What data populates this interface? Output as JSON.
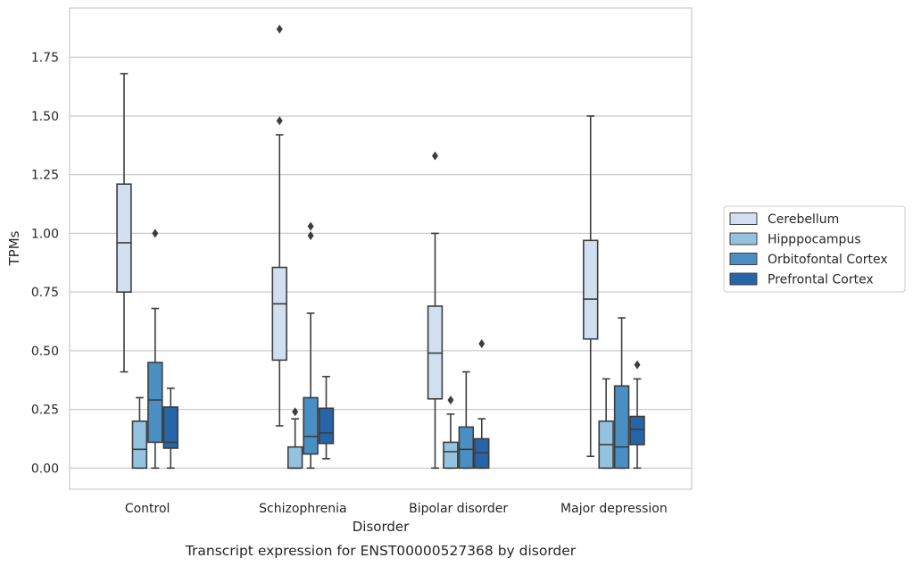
{
  "chart_data": {
    "type": "box",
    "caption": "Transcript expression for ENST00000527368 by disorder",
    "xlabel": "Disorder",
    "ylabel": "TPMs",
    "ylim": [
      -0.09,
      1.96
    ],
    "yticks": [
      0.0,
      0.25,
      0.5,
      0.75,
      1.0,
      1.25,
      1.5,
      1.75
    ],
    "ytick_labels": [
      "0.00",
      "0.25",
      "0.50",
      "0.75",
      "1.00",
      "1.25",
      "1.50",
      "1.75"
    ],
    "grid": "horizontal",
    "legend_position": "right",
    "categories": [
      "Control",
      "Schizophrenia",
      "Bipolar disorder",
      "Major depression"
    ],
    "series": [
      {
        "name": "Cerebellum",
        "color": "#d0e0f0",
        "boxes": [
          {
            "whislo": 0.41,
            "q1": 0.75,
            "med": 0.96,
            "q3": 1.21,
            "whishi": 1.68,
            "fliers": []
          },
          {
            "whislo": 0.18,
            "q1": 0.46,
            "med": 0.7,
            "q3": 0.855,
            "whishi": 1.42,
            "fliers": [
              1.48,
              1.87
            ]
          },
          {
            "whislo": 0.0,
            "q1": 0.295,
            "med": 0.49,
            "q3": 0.69,
            "whishi": 1.0,
            "fliers": [
              1.33
            ]
          },
          {
            "whislo": 0.05,
            "q1": 0.55,
            "med": 0.72,
            "q3": 0.97,
            "whishi": 1.5,
            "fliers": []
          }
        ]
      },
      {
        "name": "Hipppocampus",
        "color": "#94c3df",
        "boxes": [
          {
            "whislo": 0.0,
            "q1": 0.0,
            "med": 0.08,
            "q3": 0.2,
            "whishi": 0.3,
            "fliers": []
          },
          {
            "whislo": 0.0,
            "q1": 0.0,
            "med": 0.0,
            "q3": 0.09,
            "whishi": 0.21,
            "fliers": [
              0.24
            ]
          },
          {
            "whislo": 0.0,
            "q1": 0.0,
            "med": 0.07,
            "q3": 0.11,
            "whishi": 0.23,
            "fliers": [
              0.29
            ]
          },
          {
            "whislo": 0.0,
            "q1": 0.0,
            "med": 0.1,
            "q3": 0.2,
            "whishi": 0.38,
            "fliers": []
          }
        ]
      },
      {
        "name": "Orbitofontal Cortex",
        "color": "#4a8fc4",
        "boxes": [
          {
            "whislo": 0.0,
            "q1": 0.11,
            "med": 0.29,
            "q3": 0.45,
            "whishi": 0.68,
            "fliers": [
              1.0
            ]
          },
          {
            "whislo": 0.0,
            "q1": 0.06,
            "med": 0.135,
            "q3": 0.3,
            "whishi": 0.66,
            "fliers": [
              0.99,
              1.03
            ]
          },
          {
            "whislo": 0.0,
            "q1": 0.0,
            "med": 0.08,
            "q3": 0.175,
            "whishi": 0.41,
            "fliers": []
          },
          {
            "whislo": 0.0,
            "q1": 0.0,
            "med": 0.09,
            "q3": 0.35,
            "whishi": 0.64,
            "fliers": []
          }
        ]
      },
      {
        "name": "Prefrontal Cortex",
        "color": "#2565a8",
        "boxes": [
          {
            "whislo": 0.0,
            "q1": 0.085,
            "med": 0.11,
            "q3": 0.26,
            "whishi": 0.34,
            "fliers": []
          },
          {
            "whislo": 0.04,
            "q1": 0.105,
            "med": 0.15,
            "q3": 0.255,
            "whishi": 0.39,
            "fliers": []
          },
          {
            "whislo": 0.0,
            "q1": 0.0,
            "med": 0.065,
            "q3": 0.125,
            "whishi": 0.21,
            "fliers": [
              0.53
            ]
          },
          {
            "whislo": 0.0,
            "q1": 0.1,
            "med": 0.165,
            "q3": 0.22,
            "whishi": 0.38,
            "fliers": [
              0.44
            ]
          }
        ]
      }
    ]
  }
}
